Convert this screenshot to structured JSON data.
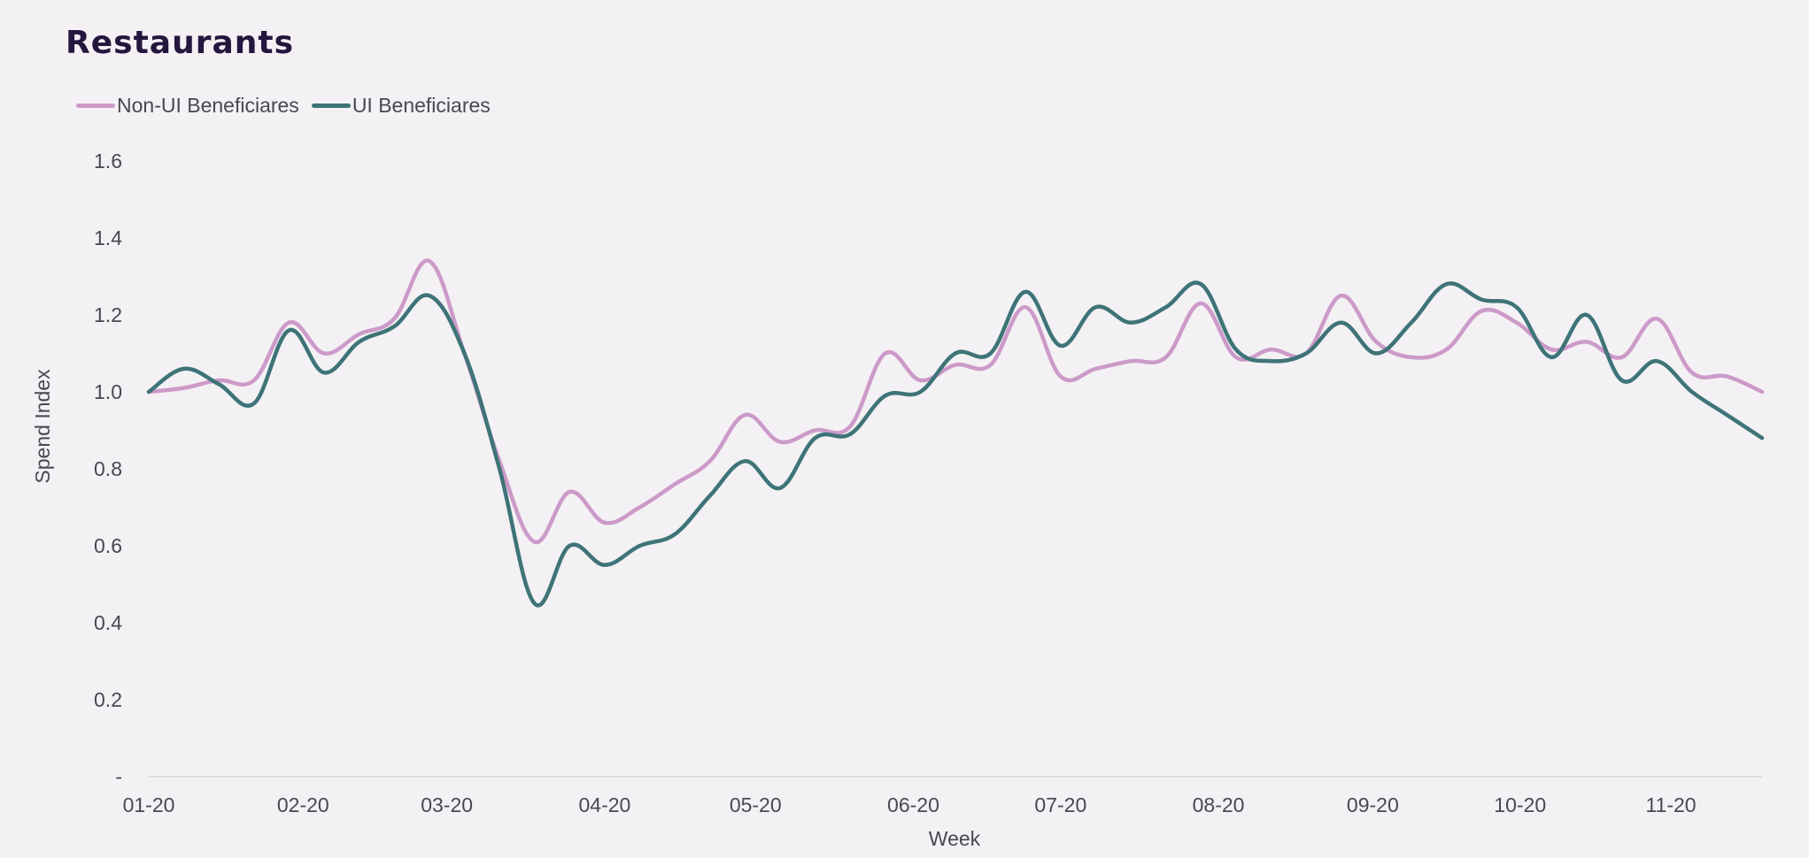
{
  "chart_data": {
    "type": "line",
    "title": "Restaurants",
    "xlabel": "Week",
    "ylabel": "Spend Index",
    "ylim": [
      0,
      1.6
    ],
    "yticks": [
      {
        "value": 0,
        "label": "-"
      },
      {
        "value": 0.2,
        "label": "0.2"
      },
      {
        "value": 0.4,
        "label": "0.4"
      },
      {
        "value": 0.6,
        "label": "0.6"
      },
      {
        "value": 0.8,
        "label": "0.8"
      },
      {
        "value": 1.0,
        "label": "1.0"
      },
      {
        "value": 1.2,
        "label": "1.2"
      },
      {
        "value": 1.4,
        "label": "1.4"
      },
      {
        "value": 1.6,
        "label": "1.6"
      }
    ],
    "xlim": [
      0,
      46
    ],
    "xticks": [
      {
        "value": 0,
        "label": "01-20"
      },
      {
        "value": 4.4,
        "label": "02-20"
      },
      {
        "value": 8.5,
        "label": "03-20"
      },
      {
        "value": 13,
        "label": "04-20"
      },
      {
        "value": 17.3,
        "label": "05-20"
      },
      {
        "value": 21.8,
        "label": "06-20"
      },
      {
        "value": 26,
        "label": "07-20"
      },
      {
        "value": 30.5,
        "label": "08-20"
      },
      {
        "value": 34.9,
        "label": "09-20"
      },
      {
        "value": 39.1,
        "label": "10-20"
      },
      {
        "value": 43.4,
        "label": "11-20"
      }
    ],
    "grid": false,
    "legend_position": "top-left",
    "series": [
      {
        "name": "Non-UI Beneficiares",
        "color": "#cc9ac8",
        "x": [
          0,
          1,
          2,
          3,
          4,
          5,
          6,
          7,
          8,
          9,
          10,
          11,
          12,
          13,
          14,
          15,
          16,
          17,
          18,
          19,
          20,
          21,
          22,
          23,
          24,
          25,
          26,
          27,
          28,
          29,
          30,
          31,
          32,
          33,
          34,
          35,
          36,
          37,
          38,
          39,
          40,
          41,
          42,
          43,
          44,
          45,
          46
        ],
        "y": [
          1.0,
          1.01,
          1.03,
          1.03,
          1.18,
          1.1,
          1.15,
          1.19,
          1.34,
          1.1,
          0.82,
          0.61,
          0.74,
          0.66,
          0.7,
          0.76,
          0.82,
          0.94,
          0.87,
          0.9,
          0.91,
          1.1,
          1.03,
          1.07,
          1.07,
          1.22,
          1.04,
          1.06,
          1.08,
          1.09,
          1.23,
          1.09,
          1.11,
          1.1,
          1.25,
          1.13,
          1.09,
          1.11,
          1.21,
          1.18,
          1.11,
          1.13,
          1.09,
          1.19,
          1.05,
          1.04,
          1.0
        ]
      },
      {
        "name": "UI Beneficiares",
        "color": "#3e7478",
        "x": [
          0,
          1,
          2,
          3,
          4,
          5,
          6,
          7,
          8,
          9,
          10,
          11,
          12,
          13,
          14,
          15,
          16,
          17,
          18,
          19,
          20,
          21,
          22,
          23,
          24,
          25,
          26,
          27,
          28,
          29,
          30,
          31,
          32,
          33,
          34,
          35,
          36,
          37,
          38,
          39,
          40,
          41,
          42,
          43,
          44,
          45,
          46
        ],
        "y": [
          1.0,
          1.06,
          1.02,
          0.97,
          1.16,
          1.05,
          1.13,
          1.17,
          1.25,
          1.1,
          0.8,
          0.45,
          0.6,
          0.55,
          0.6,
          0.63,
          0.73,
          0.82,
          0.75,
          0.88,
          0.89,
          0.99,
          1.0,
          1.1,
          1.1,
          1.26,
          1.12,
          1.22,
          1.18,
          1.22,
          1.28,
          1.11,
          1.08,
          1.1,
          1.18,
          1.1,
          1.18,
          1.28,
          1.24,
          1.22,
          1.09,
          1.2,
          1.03,
          1.08,
          1.0,
          0.94,
          0.88
        ]
      }
    ]
  }
}
